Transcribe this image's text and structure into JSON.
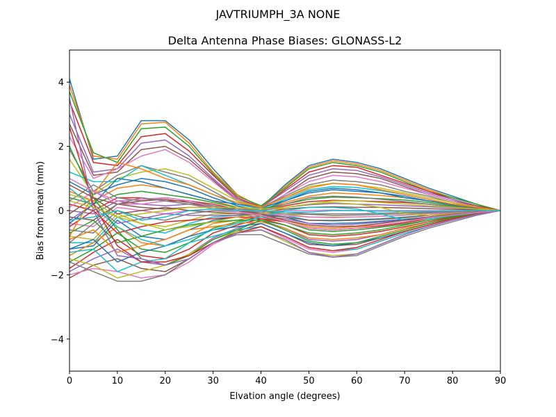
{
  "figure": {
    "suptitle": "JAVTRIUMPH_3A   NONE"
  },
  "chart_data": {
    "type": "line",
    "title": "Delta Antenna Phase Biases: GLONASS-L2",
    "xlabel": "Elvation angle (degrees)",
    "ylabel": "Bias from mean (mm)",
    "xlim": [
      0,
      90
    ],
    "ylim": [
      -5,
      5
    ],
    "xticks": [
      0,
      10,
      20,
      30,
      40,
      50,
      60,
      70,
      80,
      90
    ],
    "yticks": [
      -4,
      -2,
      0,
      2,
      4
    ],
    "ytick_labels": [
      "−4",
      "−2",
      "0",
      "2",
      "4"
    ],
    "grid": false,
    "legend": "none",
    "x": [
      0,
      5,
      10,
      15,
      20,
      25,
      30,
      35,
      40,
      45,
      50,
      55,
      60,
      65,
      70,
      75,
      80,
      85,
      90
    ],
    "colors": [
      "#1f77b4",
      "#ff7f0e",
      "#2ca02c",
      "#d62728",
      "#9467bd",
      "#8c564b",
      "#e377c2",
      "#7f7f7f",
      "#bcbd22",
      "#17becf"
    ],
    "series": [
      {
        "values": [
          4.1,
          1.6,
          1.7,
          2.8,
          2.8,
          2.2,
          1.3,
          0.5,
          0.1,
          0.8,
          1.4,
          1.6,
          1.5,
          1.3,
          1.0,
          0.7,
          0.45,
          0.2,
          0.0
        ]
      },
      {
        "values": [
          3.9,
          1.7,
          1.6,
          2.7,
          2.75,
          2.1,
          1.2,
          0.5,
          0.1,
          0.75,
          1.35,
          1.55,
          1.45,
          1.25,
          0.95,
          0.65,
          0.4,
          0.2,
          0.0
        ]
      },
      {
        "values": [
          3.7,
          1.8,
          1.5,
          2.55,
          2.6,
          2.0,
          1.15,
          0.45,
          0.15,
          0.7,
          1.3,
          1.5,
          1.4,
          1.2,
          0.9,
          0.6,
          0.4,
          0.2,
          0.0
        ]
      },
      {
        "values": [
          3.4,
          1.5,
          1.4,
          2.3,
          2.4,
          1.85,
          1.1,
          0.4,
          0.1,
          0.65,
          1.2,
          1.4,
          1.35,
          1.1,
          0.85,
          0.6,
          0.35,
          0.15,
          0.0
        ]
      },
      {
        "values": [
          3.0,
          1.2,
          1.3,
          2.1,
          2.2,
          1.7,
          1.0,
          0.35,
          0.1,
          0.6,
          1.1,
          1.3,
          1.25,
          1.05,
          0.8,
          0.55,
          0.35,
          0.15,
          0.0
        ]
      },
      {
        "values": [
          2.7,
          1.1,
          1.2,
          1.9,
          2.0,
          1.6,
          0.95,
          0.3,
          0.05,
          0.5,
          1.0,
          1.2,
          1.15,
          1.0,
          0.75,
          0.5,
          0.3,
          0.15,
          0.0
        ]
      },
      {
        "values": [
          2.3,
          1.0,
          1.3,
          1.7,
          1.9,
          1.5,
          0.9,
          0.3,
          0.05,
          0.5,
          0.9,
          1.1,
          1.05,
          0.9,
          0.7,
          0.5,
          0.3,
          0.1,
          0.0
        ]
      },
      {
        "values": [
          1.9,
          0.6,
          1.1,
          1.4,
          1.2,
          1.0,
          0.6,
          0.2,
          0.1,
          0.45,
          0.8,
          0.95,
          0.9,
          0.8,
          0.6,
          0.45,
          0.25,
          0.1,
          0.0
        ]
      },
      {
        "values": [
          1.6,
          0.5,
          1.0,
          1.2,
          1.3,
          1.1,
          0.7,
          0.3,
          0.1,
          0.4,
          0.75,
          0.85,
          0.8,
          0.7,
          0.55,
          0.4,
          0.25,
          0.1,
          0.0
        ]
      },
      {
        "values": [
          1.2,
          0.9,
          0.9,
          1.4,
          1.1,
          0.8,
          0.5,
          0.2,
          0.05,
          0.35,
          0.65,
          0.75,
          0.72,
          0.62,
          0.5,
          0.35,
          0.2,
          0.1,
          0.0
        ]
      },
      {
        "values": [
          0.9,
          0.5,
          0.8,
          1.0,
          0.9,
          0.7,
          0.4,
          0.15,
          0.0,
          0.3,
          0.55,
          0.65,
          0.6,
          0.55,
          0.45,
          0.3,
          0.2,
          0.1,
          0.0
        ]
      },
      {
        "values": [
          0.6,
          0.3,
          0.7,
          0.8,
          0.7,
          0.5,
          0.3,
          0.1,
          0.0,
          0.25,
          0.45,
          0.55,
          0.52,
          0.47,
          0.4,
          0.3,
          0.2,
          0.1,
          0.0
        ]
      },
      {
        "values": [
          0.4,
          0.2,
          0.5,
          0.6,
          0.5,
          0.4,
          0.25,
          0.1,
          0.05,
          0.2,
          0.35,
          0.42,
          0.4,
          0.37,
          0.33,
          0.25,
          0.15,
          0.05,
          0.0
        ]
      },
      {
        "values": [
          0.2,
          0.0,
          0.4,
          0.4,
          0.3,
          0.3,
          0.2,
          0.05,
          0.0,
          0.15,
          0.28,
          0.32,
          0.3,
          0.28,
          0.25,
          0.2,
          0.12,
          0.05,
          0.0
        ]
      },
      {
        "values": [
          0.0,
          -0.1,
          0.3,
          0.2,
          0.15,
          0.2,
          0.15,
          0.05,
          0.0,
          0.1,
          0.18,
          0.22,
          0.2,
          0.18,
          0.15,
          0.12,
          0.08,
          0.03,
          0.0
        ]
      },
      {
        "values": [
          -0.2,
          -0.3,
          0.2,
          0.1,
          0.05,
          0.1,
          0.1,
          0.0,
          -0.05,
          0.05,
          0.1,
          0.12,
          0.1,
          0.1,
          0.08,
          0.06,
          0.04,
          0.02,
          0.0
        ]
      },
      {
        "values": [
          -0.4,
          -0.5,
          0.1,
          0.0,
          -0.1,
          0.0,
          0.05,
          0.0,
          -0.05,
          0.0,
          0.0,
          0.02,
          0.0,
          0.0,
          0.0,
          0.0,
          0.0,
          0.0,
          0.0
        ]
      },
      {
        "values": [
          -0.6,
          -0.7,
          0.0,
          -0.2,
          -0.3,
          -0.1,
          0.0,
          -0.05,
          -0.05,
          -0.05,
          -0.1,
          -0.1,
          -0.1,
          -0.08,
          -0.06,
          -0.05,
          -0.03,
          -0.02,
          0.0
        ]
      },
      {
        "values": [
          -0.8,
          -0.9,
          -0.1,
          -0.4,
          -0.5,
          -0.3,
          -0.1,
          -0.1,
          -0.1,
          -0.1,
          -0.2,
          -0.2,
          -0.2,
          -0.18,
          -0.14,
          -0.1,
          -0.06,
          -0.03,
          0.0
        ]
      },
      {
        "values": [
          -1.0,
          -1.0,
          -0.2,
          -0.6,
          -0.7,
          -0.4,
          -0.2,
          -0.15,
          -0.1,
          -0.15,
          -0.3,
          -0.3,
          -0.28,
          -0.25,
          -0.2,
          -0.15,
          -0.1,
          -0.05,
          0.0
        ]
      },
      {
        "values": [
          -1.2,
          -1.1,
          -0.3,
          -0.8,
          -0.9,
          -0.6,
          -0.3,
          -0.2,
          -0.1,
          -0.2,
          -0.4,
          -0.4,
          -0.38,
          -0.33,
          -0.27,
          -0.2,
          -0.13,
          -0.06,
          0.0
        ]
      },
      {
        "values": [
          -1.4,
          -1.0,
          -0.5,
          -1.0,
          -1.1,
          -0.8,
          -0.4,
          -0.3,
          -0.15,
          -0.3,
          -0.5,
          -0.55,
          -0.5,
          -0.45,
          -0.35,
          -0.25,
          -0.15,
          -0.07,
          0.0
        ]
      },
      {
        "values": [
          -1.6,
          -1.2,
          -0.7,
          -1.2,
          -1.3,
          -1.0,
          -0.55,
          -0.35,
          -0.2,
          -0.35,
          -0.6,
          -0.65,
          -0.6,
          -0.52,
          -0.42,
          -0.3,
          -0.18,
          -0.08,
          0.0
        ]
      },
      {
        "values": [
          -1.8,
          -1.3,
          -0.9,
          -1.4,
          -1.5,
          -1.2,
          -0.7,
          -0.45,
          -0.25,
          -0.45,
          -0.75,
          -0.8,
          -0.75,
          -0.65,
          -0.5,
          -0.35,
          -0.2,
          -0.1,
          0.0
        ]
      },
      {
        "values": [
          -1.9,
          -1.5,
          -1.2,
          -1.6,
          -1.7,
          -1.35,
          -0.85,
          -0.55,
          -0.3,
          -0.55,
          -0.9,
          -0.95,
          -0.9,
          -0.75,
          -0.55,
          -0.4,
          -0.22,
          -0.1,
          0.0
        ]
      },
      {
        "values": [
          -2.1,
          -1.7,
          -1.5,
          -1.8,
          -1.9,
          -1.5,
          -1.0,
          -0.65,
          -0.4,
          -0.7,
          -1.05,
          -1.1,
          -1.05,
          -0.85,
          -0.65,
          -0.45,
          -0.25,
          -0.12,
          0.0
        ]
      },
      {
        "values": [
          -2.0,
          -1.8,
          -1.9,
          -2.1,
          -2.0,
          -1.6,
          -1.05,
          -0.7,
          -0.5,
          -0.85,
          -1.2,
          -1.3,
          -1.2,
          -0.95,
          -0.7,
          -0.5,
          -0.28,
          -0.12,
          0.0
        ]
      },
      {
        "values": [
          -1.6,
          -1.9,
          -2.2,
          -2.2,
          -2.0,
          -1.5,
          -1.0,
          -0.75,
          -0.75,
          -1.05,
          -1.35,
          -1.45,
          -1.4,
          -1.1,
          -0.8,
          -0.55,
          -0.35,
          -0.15,
          0.0
        ]
      },
      {
        "values": [
          -1.5,
          -1.7,
          -2.1,
          -1.9,
          -1.7,
          -1.35,
          -0.9,
          -0.65,
          -0.6,
          -0.95,
          -1.3,
          -1.4,
          -1.35,
          -1.05,
          -0.75,
          -0.5,
          -0.3,
          -0.12,
          0.0
        ]
      },
      {
        "values": [
          -1.3,
          -1.2,
          -1.9,
          -1.6,
          -1.5,
          -1.0,
          -0.8,
          -0.6,
          -0.5,
          -0.8,
          -1.15,
          -1.25,
          -1.2,
          -0.95,
          -0.7,
          -0.5,
          -0.3,
          -0.12,
          0.0
        ]
      },
      {
        "values": [
          -1.2,
          -0.9,
          -1.6,
          -1.3,
          -1.1,
          -0.8,
          -0.6,
          -0.5,
          -0.4,
          -0.7,
          -1.0,
          -1.1,
          -1.0,
          -0.85,
          -0.65,
          -0.45,
          -0.25,
          -0.1,
          0.0
        ]
      },
      {
        "values": [
          -0.9,
          -0.6,
          -1.3,
          -1.1,
          -0.9,
          -0.6,
          -0.5,
          -0.4,
          -0.35,
          -0.55,
          -0.85,
          -0.9,
          -0.85,
          -0.75,
          -0.55,
          -0.4,
          -0.22,
          -0.1,
          0.0
        ]
      },
      {
        "values": [
          -0.7,
          -0.3,
          -1.0,
          -0.8,
          -0.6,
          -0.45,
          -0.35,
          -0.3,
          -0.3,
          -0.45,
          -0.7,
          -0.75,
          -0.7,
          -0.6,
          -0.45,
          -0.3,
          -0.18,
          -0.08,
          0.0
        ]
      },
      {
        "values": [
          -0.5,
          0.0,
          -0.7,
          -0.5,
          -0.35,
          -0.3,
          -0.25,
          -0.2,
          -0.25,
          -0.35,
          -0.55,
          -0.6,
          -0.55,
          -0.48,
          -0.38,
          -0.25,
          -0.15,
          -0.06,
          0.0
        ]
      },
      {
        "values": [
          -0.3,
          0.2,
          -0.4,
          -0.25,
          -0.1,
          -0.15,
          -0.15,
          -0.15,
          -0.2,
          -0.25,
          -0.4,
          -0.45,
          -0.42,
          -0.36,
          -0.3,
          -0.2,
          -0.12,
          -0.05,
          0.0
        ]
      },
      {
        "values": [
          -0.1,
          0.4,
          -0.1,
          0.0,
          0.1,
          0.0,
          -0.05,
          -0.1,
          -0.15,
          -0.2,
          -0.3,
          -0.32,
          -0.3,
          -0.27,
          -0.22,
          -0.15,
          -0.08,
          -0.04,
          0.0
        ]
      },
      {
        "values": [
          0.1,
          0.6,
          0.2,
          0.2,
          0.3,
          0.2,
          0.05,
          -0.05,
          -0.1,
          -0.15,
          -0.2,
          -0.22,
          -0.2,
          -0.18,
          -0.15,
          -0.1,
          -0.06,
          -0.03,
          0.0
        ]
      },
      {
        "values": [
          0.3,
          0.8,
          0.4,
          0.3,
          0.4,
          0.3,
          0.15,
          0.0,
          -0.05,
          -0.1,
          -0.12,
          -0.15,
          -0.14,
          -0.12,
          -0.1,
          -0.07,
          -0.04,
          -0.02,
          0.0
        ]
      },
      {
        "values": [
          0.5,
          0.3,
          -0.2,
          -0.4,
          -0.6,
          -0.5,
          -0.35,
          -0.2,
          -0.1,
          0.1,
          0.2,
          0.25,
          0.2,
          0.1,
          -0.1,
          -0.15,
          -0.1,
          -0.05,
          0.0
        ]
      },
      {
        "values": [
          0.7,
          0.1,
          -0.5,
          -0.9,
          -1.1,
          -0.9,
          -0.6,
          -0.4,
          -0.2,
          0.0,
          0.1,
          0.1,
          0.05,
          -0.1,
          -0.3,
          -0.25,
          -0.15,
          -0.07,
          0.0
        ]
      },
      {
        "values": [
          -0.4,
          0.2,
          1.0,
          0.9,
          0.7,
          0.5,
          0.3,
          0.2,
          0.1,
          0.3,
          0.6,
          0.7,
          0.65,
          0.55,
          0.4,
          0.3,
          0.18,
          0.08,
          0.0
        ]
      },
      {
        "values": [
          -0.8,
          0.5,
          1.5,
          1.3,
          1.0,
          0.8,
          0.5,
          0.25,
          0.1,
          0.4,
          0.7,
          0.85,
          0.8,
          0.65,
          0.5,
          0.35,
          0.2,
          0.1,
          0.0
        ]
      },
      {
        "values": [
          2.0,
          0.4,
          -0.6,
          -1.5,
          -1.7,
          -1.4,
          -0.9,
          -0.6,
          -0.3,
          -0.6,
          -0.95,
          -1.05,
          -1.0,
          -0.8,
          -0.6,
          -0.4,
          -0.22,
          -0.1,
          0.0
        ]
      },
      {
        "values": [
          2.6,
          0.2,
          -1.1,
          -1.6,
          -1.6,
          -1.4,
          -1.0,
          -0.7,
          -0.5,
          -0.8,
          -1.15,
          -1.25,
          -1.15,
          -0.9,
          -0.65,
          -0.45,
          -0.25,
          -0.1,
          0.0
        ]
      },
      {
        "values": [
          3.5,
          0.0,
          -1.4,
          -1.5,
          -1.7,
          -1.5,
          -1.0,
          -0.7,
          -0.6,
          -0.9,
          -1.3,
          -1.45,
          -1.35,
          -1.05,
          -0.75,
          -0.5,
          -0.3,
          -0.12,
          0.0
        ]
      },
      {
        "values": [
          0.8,
          0.4,
          0.2,
          0.3,
          0.35,
          0.25,
          0.1,
          0.0,
          -0.1,
          -0.3,
          -0.45,
          -0.5,
          -0.48,
          -0.4,
          -0.3,
          -0.2,
          -0.12,
          -0.05,
          0.0
        ]
      },
      {
        "values": [
          1.0,
          0.6,
          0.3,
          0.35,
          0.4,
          0.3,
          0.1,
          -0.05,
          -0.15,
          -0.35,
          -0.55,
          -0.6,
          -0.55,
          -0.45,
          -0.35,
          -0.22,
          -0.14,
          -0.06,
          0.0
        ]
      },
      {
        "values": [
          -1.0,
          -0.4,
          0.2,
          0.4,
          0.3,
          0.2,
          0.1,
          0.05,
          0.0,
          0.2,
          0.4,
          0.45,
          0.42,
          0.35,
          0.28,
          0.2,
          0.12,
          0.05,
          0.0
        ]
      },
      {
        "values": [
          0.3,
          0.1,
          -0.2,
          -0.1,
          0.0,
          0.1,
          0.1,
          0.1,
          0.05,
          0.1,
          0.2,
          0.3,
          0.3,
          0.25,
          0.2,
          0.15,
          0.1,
          0.05,
          0.0
        ]
      },
      {
        "values": [
          -0.3,
          -0.2,
          0.0,
          -0.3,
          -0.2,
          0.0,
          0.05,
          0.0,
          0.0,
          -0.05,
          -0.05,
          0.0,
          0.0,
          -0.02,
          -0.02,
          -0.02,
          -0.01,
          0.0,
          0.0
        ]
      }
    ]
  }
}
